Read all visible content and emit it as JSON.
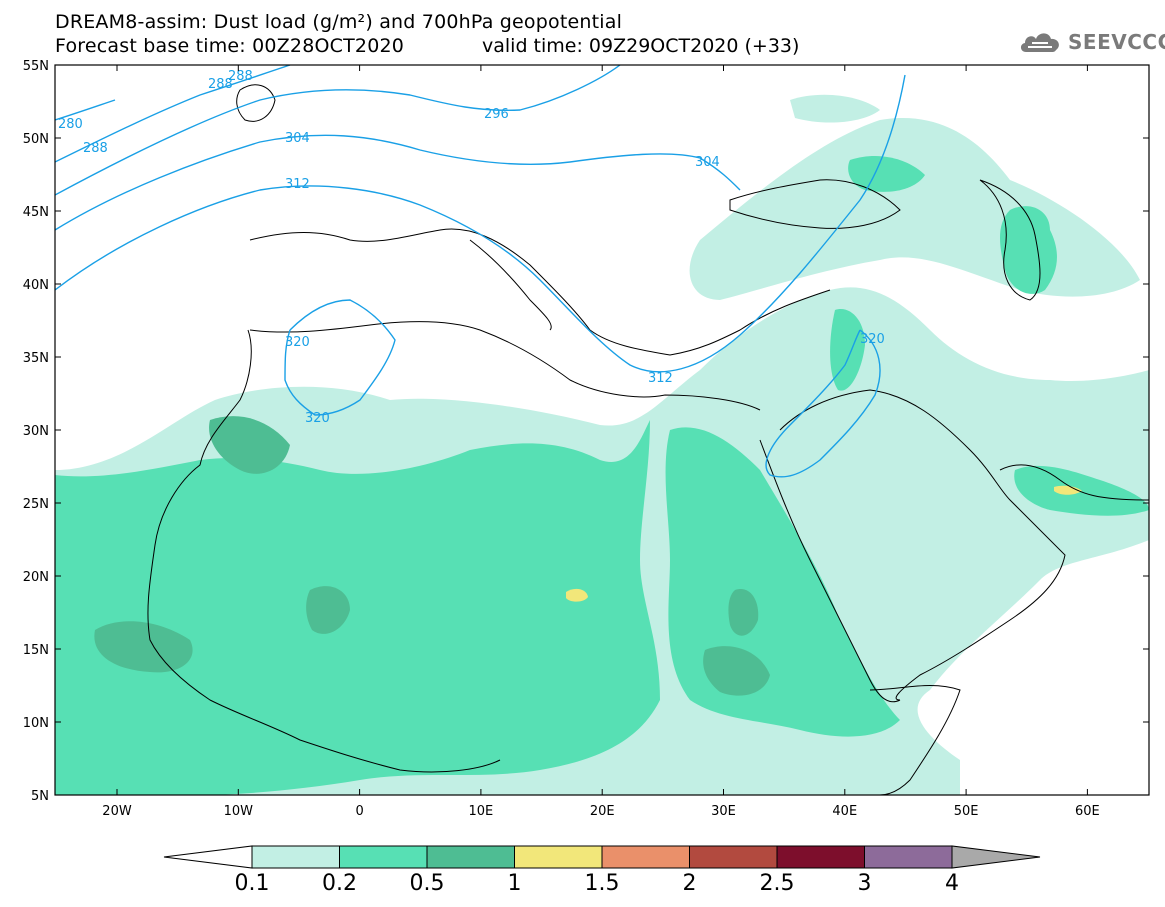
{
  "header": {
    "title_line1": "DREAM8-assim: Dust load (g/m²) and 700hPa geopotential",
    "base_time": "Forecast base time: 00Z28OCT2020",
    "valid_time": "valid time: 09Z29OCT2020 (+33)"
  },
  "brand": {
    "name": "SEEVCCC",
    "icon": "cloud-logo-icon"
  },
  "map": {
    "lat_labels": [
      "55N",
      "50N",
      "45N",
      "40N",
      "35N",
      "30N",
      "25N",
      "20N",
      "15N",
      "10N",
      "5N"
    ],
    "lon_labels": [
      "20W",
      "10W",
      "0",
      "10E",
      "20E",
      "30E",
      "40E",
      "50E",
      "60E"
    ],
    "contour_labels": [
      "280",
      "288",
      "288",
      "288",
      "296",
      "304",
      "304",
      "312",
      "312",
      "320",
      "320",
      "320"
    ],
    "contour_color": "#1aa0e6"
  },
  "colorbar": {
    "levels": [
      "0.1",
      "0.2",
      "0.5",
      "1",
      "1.5",
      "2",
      "2.5",
      "3",
      "4"
    ],
    "colors": [
      "#c2efe4",
      "#57e0b4",
      "#4ebd93",
      "#f2e77a",
      "#ea906a",
      "#b24a3f",
      "#7d0e2c",
      "#8d6b9a",
      "#a9a9a9"
    ]
  }
}
